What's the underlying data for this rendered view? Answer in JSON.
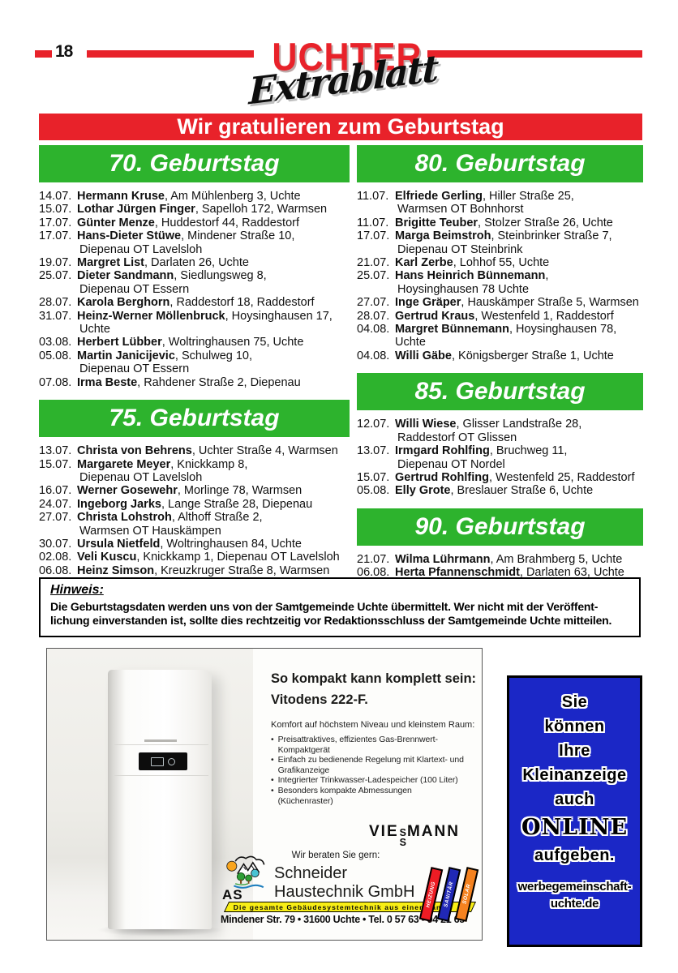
{
  "page_number": "18",
  "masthead": {
    "title": "UCHTER",
    "subtitle": "Extrablatt"
  },
  "main_banner": "Wir gratulieren zum Geburtstag",
  "colors": {
    "red": "#e8222a",
    "green": "#2db32d",
    "blue": "#1b27c6",
    "yellow": "#f8ee15"
  },
  "sections": [
    {
      "id": "70",
      "title": "70. Geburtstag",
      "column": "left",
      "entries": [
        {
          "date": "14.07.",
          "name": "Hermann Kruse",
          "address": ", Am Mühlenberg 3,  Uchte",
          "address2": ""
        },
        {
          "date": "15.07.",
          "name": "Lothar Jürgen Finger",
          "address": ", Sapelloh 172,  Warmsen",
          "address2": ""
        },
        {
          "date": "17.07.",
          "name": "Günter Menze",
          "address": ", Huddestorf 44,  Raddestorf",
          "address2": ""
        },
        {
          "date": "17.07.",
          "name": "Hans-Dieter Stüwe",
          "address": ", Mindener Straße 10,",
          "address2": "Diepenau OT Lavelsloh"
        },
        {
          "date": "19.07.",
          "name": "Margret List",
          "address": ", Darlaten 26,  Uchte",
          "address2": ""
        },
        {
          "date": "25.07.",
          "name": "Dieter Sandmann",
          "address": ", Siedlungsweg 8,",
          "address2": "Diepenau OT Essern"
        },
        {
          "date": "28.07.",
          "name": "Karola Berghorn",
          "address": ", Raddestorf 18,  Raddestorf",
          "address2": ""
        },
        {
          "date": "31.07.",
          "name": "Heinz-Werner Möllenbruck",
          "address": ", Hoysinghausen 17,",
          "address2": "Uchte"
        },
        {
          "date": "03.08.",
          "name": "Herbert Lübber",
          "address": ", Woltringhausen 75, Uchte",
          "address2": ""
        },
        {
          "date": "05.08.",
          "name": "Martin Janicijevic",
          "address": ", Schulweg 10,",
          "address2": "Diepenau OT Essern"
        },
        {
          "date": "07.08.",
          "name": "Irma Beste",
          "address": ", Rahdener Straße 2,  Diepenau",
          "address2": ""
        }
      ]
    },
    {
      "id": "75",
      "title": "75. Geburtstag",
      "column": "left",
      "entries": [
        {
          "date": "13.07.",
          "name": "Christa von Behrens",
          "address": ", Uchter Straße 4,  Warmsen",
          "address2": ""
        },
        {
          "date": "15.07.",
          "name": "Margarete Meyer",
          "address": ", Knickkamp 8,",
          "address2": "Diepenau OT Lavelsloh"
        },
        {
          "date": "16.07.",
          "name": "Werner Gosewehr",
          "address": ", Morlinge 78,  Warmsen",
          "address2": ""
        },
        {
          "date": "24.07.",
          "name": "Ingeborg Jarks",
          "address": ", Lange Straße 28,  Diepenau",
          "address2": ""
        },
        {
          "date": "27.07.",
          "name": "Christa Lohstroh",
          "address": ", Althoff Straße 2,",
          "address2": "Warmsen OT Hauskämpen"
        },
        {
          "date": "30.07.",
          "name": "Ursula Nietfeld",
          "address": ", Woltringhausen 84,  Uchte",
          "address2": ""
        },
        {
          "date": "02.08.",
          "name": "Veli Kuscu",
          "address": ", Knickkamp 1, Diepenau OT Lavelsloh",
          "address2": ""
        },
        {
          "date": "06.08.",
          "name": "Heinz Simson",
          "address": ", Kreuzkruger Straße 8,  Warmsen",
          "address2": ""
        }
      ]
    },
    {
      "id": "80",
      "title": "80. Geburtstag",
      "column": "right",
      "entries": [
        {
          "date": "11.07.",
          "name": "Elfriede Gerling",
          "address": ", Hiller Straße 25,",
          "address2": "Warmsen OT Bohnhorst"
        },
        {
          "date": "11.07.",
          "name": "Brigitte Teuber",
          "address": ", Stolzer Straße 26,  Uchte",
          "address2": ""
        },
        {
          "date": "17.07.",
          "name": "Marga Beimstroh",
          "address": ", Steinbrinker Straße 7,",
          "address2": "Diepenau OT Steinbrink"
        },
        {
          "date": "21.07.",
          "name": "Karl Zerbe",
          "address": ", Lohhof 55,  Uchte",
          "address2": ""
        },
        {
          "date": "25.07.",
          "name": "Hans Heinrich Bünnemann",
          "address": ",",
          "address2": "Hoysinghausen 78  Uchte"
        },
        {
          "date": "27.07.",
          "name": "Inge Gräper",
          "address": ", Hauskämper Straße 5,  Warmsen",
          "address2": ""
        },
        {
          "date": "28.07.",
          "name": "Gertrud Kraus",
          "address": ", Westenfeld 1,  Raddestorf",
          "address2": ""
        },
        {
          "date": "04.08.",
          "name": "Margret Bünnemann",
          "address": ", Hoysinghausen 78,  Uchte",
          "address2": ""
        },
        {
          "date": "04.08.",
          "name": "Willi Gäbe",
          "address": ", Königsberger Straße 1,  Uchte",
          "address2": ""
        }
      ]
    },
    {
      "id": "85",
      "title": "85. Geburtstag",
      "column": "right",
      "entries": [
        {
          "date": "12.07.",
          "name": "Willi Wiese",
          "address": ", Glisser Landstraße 28,",
          "address2": "Raddestorf OT Glissen"
        },
        {
          "date": "13.07.",
          "name": "Irmgard Rohlfing",
          "address": ", Bruchweg 11,",
          "address2": "Diepenau OT Nordel"
        },
        {
          "date": "15.07.",
          "name": "Gertrud Rohlfing",
          "address": ", Westenfeld 25,  Raddestorf",
          "address2": ""
        },
        {
          "date": "05.08.",
          "name": "Elly Grote",
          "address": ", Breslauer Straße 6,  Uchte",
          "address2": ""
        }
      ]
    },
    {
      "id": "90",
      "title": "90. Geburtstag",
      "column": "right",
      "entries": [
        {
          "date": "21.07.",
          "name": "Wilma Lührmann",
          "address": ", Am Brahmberg 5, Uchte",
          "address2": ""
        },
        {
          "date": "06.08.",
          "name": "Herta Pfannenschmidt",
          "address": ", Darlaten 63, Uchte",
          "address2": ""
        }
      ]
    }
  ],
  "hinweis": {
    "title": "Hinweis:",
    "lines": [
      "Die Geburtstagsdaten werden uns von der Samtgemeinde Uchte übermittelt. Wer nicht mit der Veröffent-",
      "lichung einverstanden ist, sollte dies rechtzeitig vor Redaktionsschluss der Samtgemeinde Uchte mitteilen."
    ]
  },
  "viessmann_ad": {
    "headline_line1": "So kompakt kann komplett sein:",
    "headline_line2": "Vitodens 222-F.",
    "intro": "Komfort auf höchstem Niveau und kleinstem Raum:",
    "bullets": [
      "Preisattraktives, effizientes Gas-Brennwert-Kompaktgerät",
      "Einfach zu bedienende Regelung mit Klartext- und Grafikanzeige",
      "Integrierter Trinkwasser-Ladespeicher (100 Liter)",
      "Besonders kompakte Abmessungen (Küchenraster)"
    ],
    "brand_pre": "VIE",
    "brand_s1": "S",
    "brand_s2": "S",
    "brand_post": "MANN",
    "contact_intro": "Wir beraten Sie gern:",
    "company_abbr": "AS",
    "company_name_line1": "Schneider",
    "company_name_line2": "Haustechnik GmbH",
    "tagline": "Die gesamte Gebäudesystemtechnik aus einer Hand",
    "address": "Mindener Str. 79 • 31600 Uchte • Tel. 0 57 63 - 94 21 65",
    "stripes": [
      {
        "label": "HEIZUNG",
        "color": "#ee1c24"
      },
      {
        "label": "SANITÄR",
        "color": "#2028b6"
      },
      {
        "label": "SOLAR",
        "color": "#f5821f"
      }
    ]
  },
  "online_ad": {
    "lines": [
      "Sie",
      "können",
      "Ihre",
      "Kleinanzeige",
      "auch",
      "ONLINE",
      "aufgeben."
    ],
    "url_line1": "werbegemeinschaft-",
    "url_line2": "uchte.de"
  }
}
